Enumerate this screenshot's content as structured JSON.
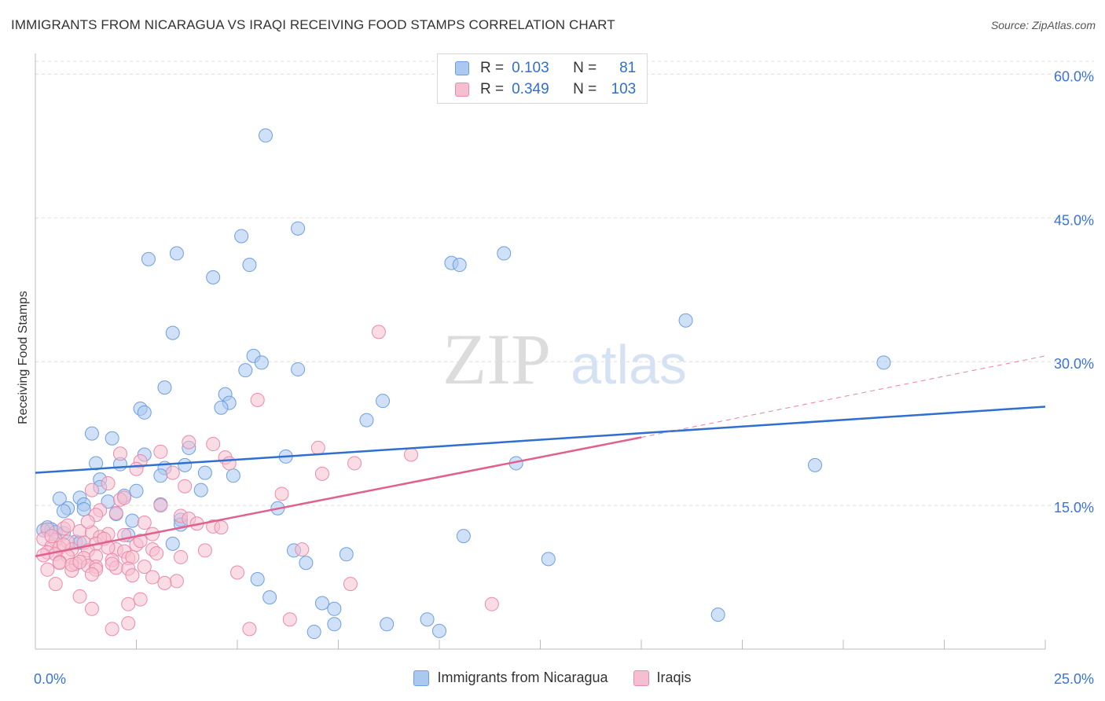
{
  "header": {
    "title": "IMMIGRANTS FROM NICARAGUA VS IRAQI RECEIVING FOOD STAMPS CORRELATION CHART",
    "source": "Source: ZipAtlas.com"
  },
  "watermark": {
    "zip": "ZIP",
    "atlas": "atlas"
  },
  "legend": {
    "r_label": "R =",
    "n_label": "N =",
    "rows": [
      {
        "r": "0.103",
        "n": "81"
      },
      {
        "r": "0.349",
        "n": "103"
      }
    ]
  },
  "chart_data": {
    "type": "scatter",
    "ylabel": "Receiving Food Stamps",
    "xlim": [
      0,
      25
    ],
    "ylim": [
      0,
      62
    ],
    "x_ticks": [
      {
        "value": 0,
        "label": "0.0%"
      },
      {
        "value": 25,
        "label": "25.0%"
      }
    ],
    "y_ticks": [
      {
        "value": 15,
        "label": "15.0%"
      },
      {
        "value": 30,
        "label": "30.0%"
      },
      {
        "value": 45,
        "label": "45.0%"
      },
      {
        "value": 60,
        "label": "60.0%"
      }
    ],
    "grid": true,
    "colors": {
      "nicaragua_fill": "#aac8f0",
      "nicaragua_edge": "#6d9fe0",
      "nicaragua_line": "#2f6fd0",
      "iraqi_fill": "#f6bfd0",
      "iraqi_edge": "#ea8aab",
      "iraqi_line": "#e0608e",
      "axis_text": "#3a74d6"
    },
    "series": [
      {
        "name": "Immigrants from Nicaragua",
        "trend": {
          "x0": 0,
          "y0": 18.4,
          "x1": 25,
          "y1": 25.3
        },
        "points": [
          [
            5.7,
            53.6
          ],
          [
            6.5,
            43.9
          ],
          [
            5.1,
            43.1
          ],
          [
            3.5,
            41.3
          ],
          [
            2.8,
            40.7
          ],
          [
            5.3,
            40.1
          ],
          [
            10.3,
            40.3
          ],
          [
            10.5,
            40.1
          ],
          [
            11.6,
            41.3
          ],
          [
            4.4,
            38.8
          ],
          [
            16.1,
            34.3
          ],
          [
            3.4,
            33.0
          ],
          [
            5.4,
            30.6
          ],
          [
            5.6,
            29.9
          ],
          [
            5.2,
            29.1
          ],
          [
            6.5,
            29.2
          ],
          [
            21.0,
            29.9
          ],
          [
            3.2,
            27.3
          ],
          [
            4.7,
            26.6
          ],
          [
            4.8,
            25.7
          ],
          [
            4.6,
            25.2
          ],
          [
            8.6,
            25.9
          ],
          [
            2.6,
            25.1
          ],
          [
            2.7,
            24.7
          ],
          [
            8.2,
            23.9
          ],
          [
            1.4,
            22.5
          ],
          [
            1.9,
            22.0
          ],
          [
            3.8,
            21.0
          ],
          [
            2.7,
            20.3
          ],
          [
            6.2,
            20.1
          ],
          [
            1.5,
            19.4
          ],
          [
            2.1,
            19.3
          ],
          [
            3.7,
            19.2
          ],
          [
            3.2,
            18.9
          ],
          [
            11.9,
            19.4
          ],
          [
            19.3,
            19.2
          ],
          [
            4.2,
            18.4
          ],
          [
            4.9,
            18.1
          ],
          [
            3.1,
            18.1
          ],
          [
            1.6,
            17.7
          ],
          [
            1.6,
            16.9
          ],
          [
            2.5,
            16.5
          ],
          [
            4.1,
            16.6
          ],
          [
            2.2,
            16.0
          ],
          [
            1.1,
            15.8
          ],
          [
            0.6,
            15.7
          ],
          [
            1.8,
            15.4
          ],
          [
            1.2,
            15.1
          ],
          [
            3.1,
            15.1
          ],
          [
            0.8,
            14.7
          ],
          [
            1.2,
            14.6
          ],
          [
            2.0,
            14.1
          ],
          [
            0.7,
            14.4
          ],
          [
            3.6,
            13.5
          ],
          [
            2.4,
            13.4
          ],
          [
            6.0,
            14.7
          ],
          [
            3.6,
            13.0
          ],
          [
            0.3,
            12.7
          ],
          [
            0.4,
            12.5
          ],
          [
            0.2,
            12.4
          ],
          [
            0.5,
            12.2
          ],
          [
            0.7,
            12.1
          ],
          [
            2.3,
            11.9
          ],
          [
            10.6,
            11.8
          ],
          [
            1.0,
            11.2
          ],
          [
            1.1,
            11.1
          ],
          [
            3.4,
            11.0
          ],
          [
            6.4,
            10.3
          ],
          [
            6.7,
            9.0
          ],
          [
            7.7,
            9.9
          ],
          [
            12.7,
            9.4
          ],
          [
            5.5,
            7.3
          ],
          [
            5.8,
            5.4
          ],
          [
            7.1,
            4.8
          ],
          [
            7.4,
            4.2
          ],
          [
            9.7,
            3.1
          ],
          [
            10.0,
            1.9
          ],
          [
            8.7,
            2.6
          ],
          [
            7.4,
            2.6
          ],
          [
            6.9,
            1.8
          ],
          [
            16.9,
            3.6
          ]
        ]
      },
      {
        "name": "Iraqis",
        "trend": {
          "x0": 0,
          "y0": 9.7,
          "x1": 15.0,
          "y1": 22.1
        },
        "trend_ext": {
          "x0": 15.0,
          "y0": 22.1,
          "x1": 25,
          "y1": 30.6
        },
        "points": [
          [
            8.5,
            33.1
          ],
          [
            5.5,
            26.0
          ],
          [
            3.8,
            21.6
          ],
          [
            4.4,
            21.4
          ],
          [
            7.0,
            21.0
          ],
          [
            2.1,
            20.4
          ],
          [
            3.1,
            20.6
          ],
          [
            4.7,
            20.0
          ],
          [
            2.6,
            19.6
          ],
          [
            9.3,
            20.3
          ],
          [
            7.9,
            19.4
          ],
          [
            4.8,
            19.4
          ],
          [
            2.5,
            18.8
          ],
          [
            3.4,
            18.4
          ],
          [
            7.1,
            18.3
          ],
          [
            1.8,
            17.3
          ],
          [
            3.7,
            17.0
          ],
          [
            1.4,
            16.6
          ],
          [
            6.1,
            16.2
          ],
          [
            2.1,
            15.6
          ],
          [
            3.1,
            15.0
          ],
          [
            1.6,
            14.5
          ],
          [
            1.5,
            14.0
          ],
          [
            2.0,
            14.2
          ],
          [
            3.6,
            13.9
          ],
          [
            3.8,
            13.6
          ],
          [
            2.7,
            13.2
          ],
          [
            4.4,
            12.8
          ],
          [
            4.6,
            12.7
          ],
          [
            0.3,
            12.5
          ],
          [
            0.7,
            12.6
          ],
          [
            1.1,
            12.3
          ],
          [
            1.4,
            12.2
          ],
          [
            1.8,
            12.0
          ],
          [
            2.2,
            11.9
          ],
          [
            1.6,
            11.7
          ],
          [
            0.2,
            11.5
          ],
          [
            0.5,
            11.4
          ],
          [
            0.8,
            11.2
          ],
          [
            1.2,
            11.1
          ],
          [
            1.5,
            11.0
          ],
          [
            2.5,
            10.9
          ],
          [
            0.4,
            10.7
          ],
          [
            0.6,
            10.6
          ],
          [
            0.9,
            10.4
          ],
          [
            1.3,
            10.3
          ],
          [
            2.0,
            10.4
          ],
          [
            2.2,
            10.2
          ],
          [
            2.9,
            10.4
          ],
          [
            4.2,
            10.3
          ],
          [
            6.6,
            10.4
          ],
          [
            0.3,
            10.1
          ],
          [
            0.5,
            9.9
          ],
          [
            0.8,
            9.7
          ],
          [
            1.2,
            9.5
          ],
          [
            1.5,
            9.7
          ],
          [
            1.9,
            9.3
          ],
          [
            2.3,
            9.5
          ],
          [
            2.4,
            9.6
          ],
          [
            3.6,
            9.6
          ],
          [
            0.6,
            9.1
          ],
          [
            1.0,
            8.9
          ],
          [
            1.3,
            8.7
          ],
          [
            1.5,
            8.6
          ],
          [
            2.0,
            8.5
          ],
          [
            2.3,
            8.4
          ],
          [
            0.3,
            8.3
          ],
          [
            0.9,
            8.2
          ],
          [
            1.5,
            8.3
          ],
          [
            5.0,
            8.0
          ],
          [
            7.8,
            6.8
          ],
          [
            1.4,
            7.8
          ],
          [
            2.4,
            7.7
          ],
          [
            2.9,
            7.5
          ],
          [
            3.5,
            7.1
          ],
          [
            3.2,
            6.9
          ],
          [
            0.5,
            6.8
          ],
          [
            1.1,
            5.5
          ],
          [
            2.6,
            5.2
          ],
          [
            2.3,
            4.7
          ],
          [
            1.4,
            4.2
          ],
          [
            11.3,
            4.7
          ],
          [
            6.3,
            3.1
          ],
          [
            2.3,
            2.7
          ],
          [
            1.9,
            2.1
          ],
          [
            5.3,
            2.1
          ],
          [
            0.6,
            9.0
          ],
          [
            0.9,
            8.8
          ],
          [
            1.7,
            11.5
          ],
          [
            2.9,
            12.0
          ],
          [
            0.4,
            11.8
          ],
          [
            0.7,
            10.9
          ],
          [
            1.8,
            10.6
          ],
          [
            2.6,
            11.3
          ],
          [
            3.0,
            10.0
          ],
          [
            0.2,
            9.8
          ],
          [
            1.1,
            9.1
          ],
          [
            1.9,
            8.9
          ],
          [
            2.7,
            8.6
          ],
          [
            0.8,
            12.9
          ],
          [
            1.3,
            13.3
          ],
          [
            4.0,
            13.1
          ],
          [
            2.2,
            15.8
          ]
        ]
      }
    ]
  }
}
